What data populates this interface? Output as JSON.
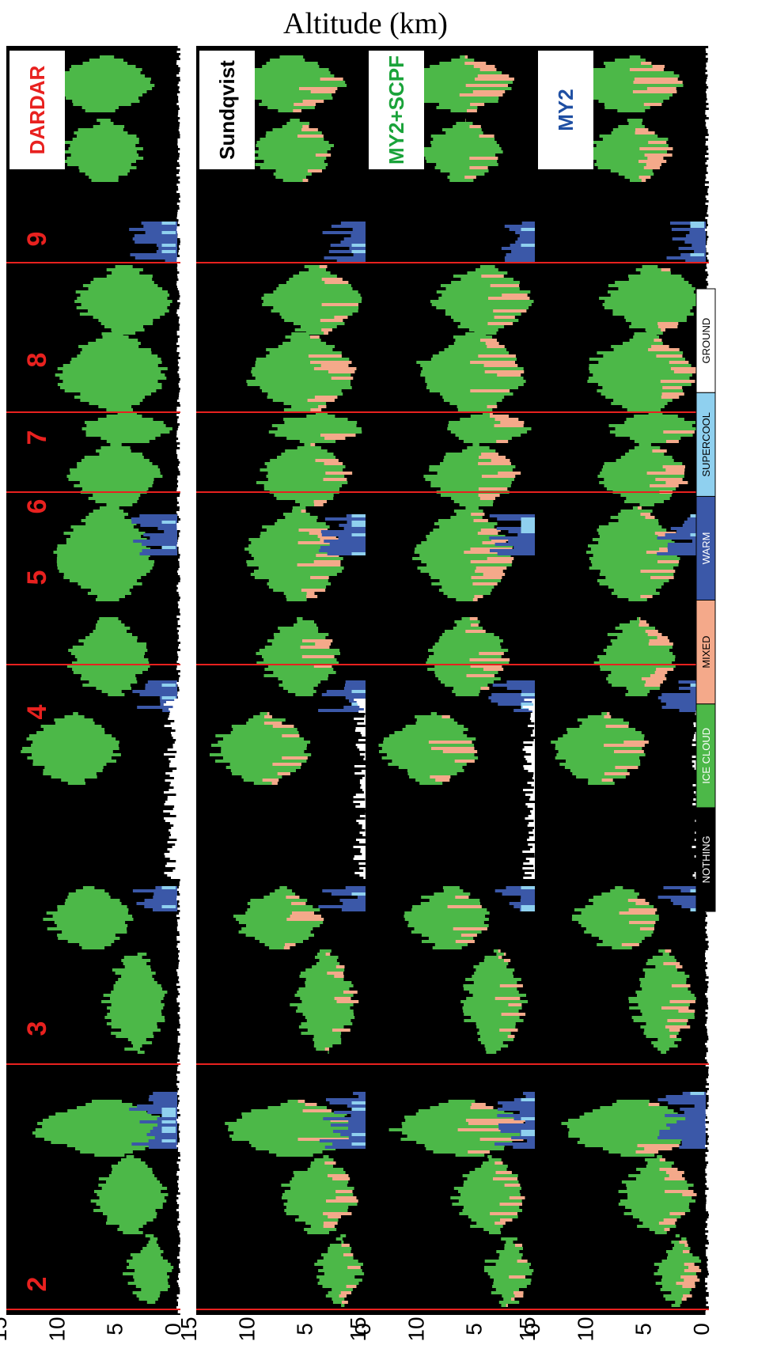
{
  "chart_data": {
    "type": "heatmap",
    "title": "Altitude (km)",
    "orientation": "rotated-90",
    "panels": [
      {
        "name": "DARDAR",
        "label_color": "#e8211f"
      },
      {
        "name": "Sundqvist",
        "label_color": "#000000"
      },
      {
        "name": "MY2+SCPF",
        "label_color": "#1aa33a"
      },
      {
        "name": "MY2",
        "label_color": "#1f4fa3"
      }
    ],
    "altitude_ticks": [
      "0",
      "5",
      "10",
      "15"
    ],
    "altitude_range_km": [
      0,
      15
    ],
    "segments": [
      "2",
      "3",
      "4",
      "5",
      "6",
      "7",
      "8",
      "9"
    ],
    "segment_label_color": "#e8211f",
    "categories": [
      {
        "name": "NOTHING",
        "color": "#000000",
        "text_color": "#ffffff"
      },
      {
        "name": "ICE CLOUD",
        "color": "#4cb848",
        "text_color": "#ffffff"
      },
      {
        "name": "MIXED",
        "color": "#f4a98a",
        "text_color": "#000000"
      },
      {
        "name": "WARM",
        "color": "#3b58a8",
        "text_color": "#ffffff"
      },
      {
        "name": "SUPERCOOL",
        "color": "#8fd0ef",
        "text_color": "#000000"
      },
      {
        "name": "GROUND",
        "color": "#ffffff",
        "text_color": "#000000"
      }
    ]
  }
}
